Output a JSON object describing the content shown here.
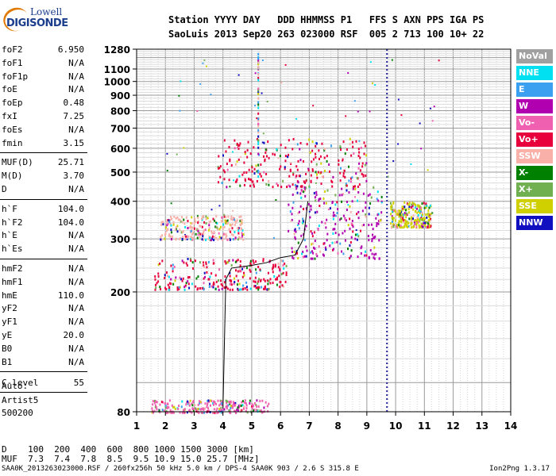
{
  "logo": {
    "line1": "Lowell",
    "line2": "DIGISONDE"
  },
  "header": {
    "row1": "Station YYYY DAY   DDD HHMMSS P1   FFS S AXN PPS IGA PS",
    "row2": "SaoLuis 2013 Sep20 263 023000 RSF  005 2 713 100 10+ 22"
  },
  "params_group1": [
    {
      "name": "foF2",
      "value": "6.950"
    },
    {
      "name": "foF1",
      "value": "N/A"
    },
    {
      "name": "foF1p",
      "value": "N/A"
    },
    {
      "name": "foE",
      "value": "N/A"
    },
    {
      "name": "foEp",
      "value": "0.48"
    },
    {
      "name": "fxI",
      "value": "7.25"
    },
    {
      "name": "foEs",
      "value": "N/A"
    },
    {
      "name": "fmin",
      "value": "3.15"
    }
  ],
  "params_group2": [
    {
      "name": "MUF(D)",
      "value": "25.71"
    },
    {
      "name": "M(D)",
      "value": "3.70"
    },
    {
      "name": "D",
      "value": "N/A"
    }
  ],
  "params_group3": [
    {
      "name": "h`F",
      "value": "104.0"
    },
    {
      "name": "h`F2",
      "value": "104.0"
    },
    {
      "name": "h`E",
      "value": "N/A"
    },
    {
      "name": "h`Es",
      "value": "N/A"
    }
  ],
  "params_group4": [
    {
      "name": "hmF2",
      "value": "N/A"
    },
    {
      "name": "hmF1",
      "value": "N/A"
    },
    {
      "name": "hmE",
      "value": "110.0"
    },
    {
      "name": "yF2",
      "value": "N/A"
    },
    {
      "name": "yF1",
      "value": "N/A"
    },
    {
      "name": "yE",
      "value": "20.0"
    },
    {
      "name": "B0",
      "value": "N/A"
    },
    {
      "name": "B1",
      "value": "N/A"
    }
  ],
  "clevel": {
    "name": "C-level",
    "value": "55"
  },
  "auto": {
    "line1": "Auto:",
    "line2": "Artist5",
    "line3": "500200"
  },
  "footer": {
    "d_row": "D    100  200  400  600  800 1000 1500 3000 [km]",
    "muf_row": "MUF  7.3  7.4  7.8  8.5  9.5 10.9 15.0 25.7 [MHz]",
    "source": "SAA0K_2013263023000.RSF / 260fx256h 50 kHz 5.0 km / DPS-4 SAA0K 903 / 2.6 S 315.8 E",
    "version": "Ion2Png 1.3.17"
  },
  "legend": [
    {
      "label": "NoVal",
      "color": "#a0a0a0"
    },
    {
      "label": "NNE",
      "color": "#00e0f0"
    },
    {
      "label": "E",
      "color": "#3ca0f0"
    },
    {
      "label": "W",
      "color": "#b000b0"
    },
    {
      "label": "Vo-",
      "color": "#f060b0"
    },
    {
      "label": "Vo+",
      "color": "#e8003c"
    },
    {
      "label": "SSW",
      "color": "#f8b0a8"
    },
    {
      "label": "X-",
      "color": "#008000"
    },
    {
      "label": "X+",
      "color": "#70b050"
    },
    {
      "label": "SSE",
      "color": "#d0d000"
    },
    {
      "label": "NNW",
      "color": "#1010c0"
    }
  ],
  "chart_data": {
    "type": "scatter",
    "title": "",
    "xlabel": "",
    "ylabel": "",
    "xlim": [
      1,
      14
    ],
    "ylim": [
      80,
      1280
    ],
    "x_ticks": [
      1,
      2,
      3,
      4,
      5,
      6,
      7,
      8,
      9,
      10,
      11,
      12,
      13,
      14
    ],
    "y_ticks": [
      80,
      200,
      300,
      400,
      500,
      600,
      700,
      800,
      900,
      1000,
      1100,
      1280
    ],
    "y_scale": "log",
    "grid": true,
    "vertical_marker_mhz": 9.7,
    "trace": [
      [
        4.0,
        82
      ],
      [
        4.1,
        220
      ],
      [
        4.3,
        240
      ],
      [
        5.0,
        245
      ],
      [
        5.5,
        250
      ],
      [
        6.0,
        260
      ],
      [
        6.5,
        265
      ],
      [
        6.8,
        300
      ],
      [
        6.95,
        400
      ]
    ],
    "clusters": [
      {
        "label": "E/Es echoes near 80-90 km",
        "x": [
          1.5,
          5.6
        ],
        "y": [
          80,
          88
        ],
        "color": "Vo-"
      },
      {
        "label": "F trace 210-260",
        "x": [
          1.6,
          6.2
        ],
        "y": [
          205,
          260
        ],
        "color": "Vo+"
      },
      {
        "label": "F trace multiple 300-350",
        "x": [
          1.8,
          4.7
        ],
        "y": [
          300,
          360
        ],
        "color": "SSW"
      },
      {
        "label": "F2 echoes 260-450",
        "x": [
          6.2,
          9.5
        ],
        "y": [
          260,
          450
        ],
        "color": "W"
      },
      {
        "label": "2nd hop 450-650",
        "x": [
          3.8,
          9.0
        ],
        "y": [
          450,
          650
        ],
        "color": "Vo+"
      },
      {
        "label": "Oblique echoes 330-400",
        "x": [
          9.8,
          11.2
        ],
        "y": [
          330,
          400
        ],
        "color": "SSE"
      }
    ]
  }
}
